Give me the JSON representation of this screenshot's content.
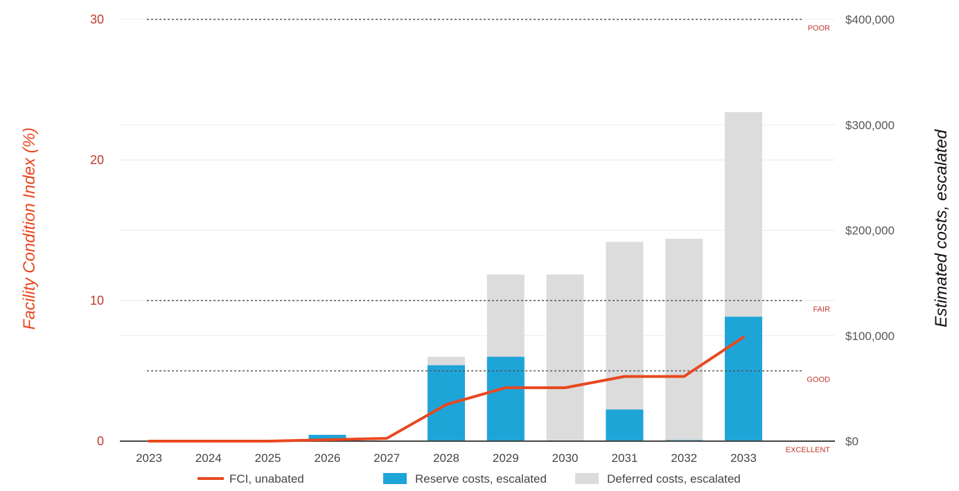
{
  "chart_data": {
    "type": "bar",
    "categories": [
      "2023",
      "2024",
      "2025",
      "2026",
      "2027",
      "2028",
      "2029",
      "2030",
      "2031",
      "2032",
      "2033"
    ],
    "series": [
      {
        "name": "FCI, unabated",
        "type": "line",
        "axis": "left",
        "color": "#e8481f",
        "values": [
          0,
          0,
          0,
          0.1,
          0.2,
          2.6,
          3.8,
          3.8,
          4.6,
          4.6,
          7.4
        ]
      },
      {
        "name": "Reserve costs, escalated",
        "type": "bar",
        "axis": "right",
        "color": "#1ea5d8",
        "values": [
          0,
          0,
          0,
          6000,
          0,
          72000,
          80000,
          0,
          30000,
          1000,
          118000
        ]
      },
      {
        "name": "Deferred costs, escalated",
        "type": "bar",
        "axis": "right",
        "color": "#dcdcdc",
        "values": [
          0,
          0,
          0,
          0,
          0,
          80000,
          158000,
          158000,
          189000,
          192000,
          312000
        ]
      }
    ],
    "y_left": {
      "label": "Facility Condition Index (%)",
      "ticks": [
        "0",
        "10",
        "20",
        "30"
      ],
      "range": [
        0,
        30
      ]
    },
    "y_right": {
      "label": "Estimated costs, escalated",
      "ticks": [
        "$0",
        "$100,000",
        "$200,000",
        "$300,000",
        "$400,000"
      ],
      "range": [
        0,
        400000
      ]
    },
    "thresholds": [
      {
        "label": "EXCELLENT",
        "value": 0
      },
      {
        "label": "GOOD",
        "value": 5
      },
      {
        "label": "FAIR",
        "value": 10
      },
      {
        "label": "POOR",
        "value": 30
      }
    ],
    "legend_position": "bottom",
    "grid": true
  }
}
